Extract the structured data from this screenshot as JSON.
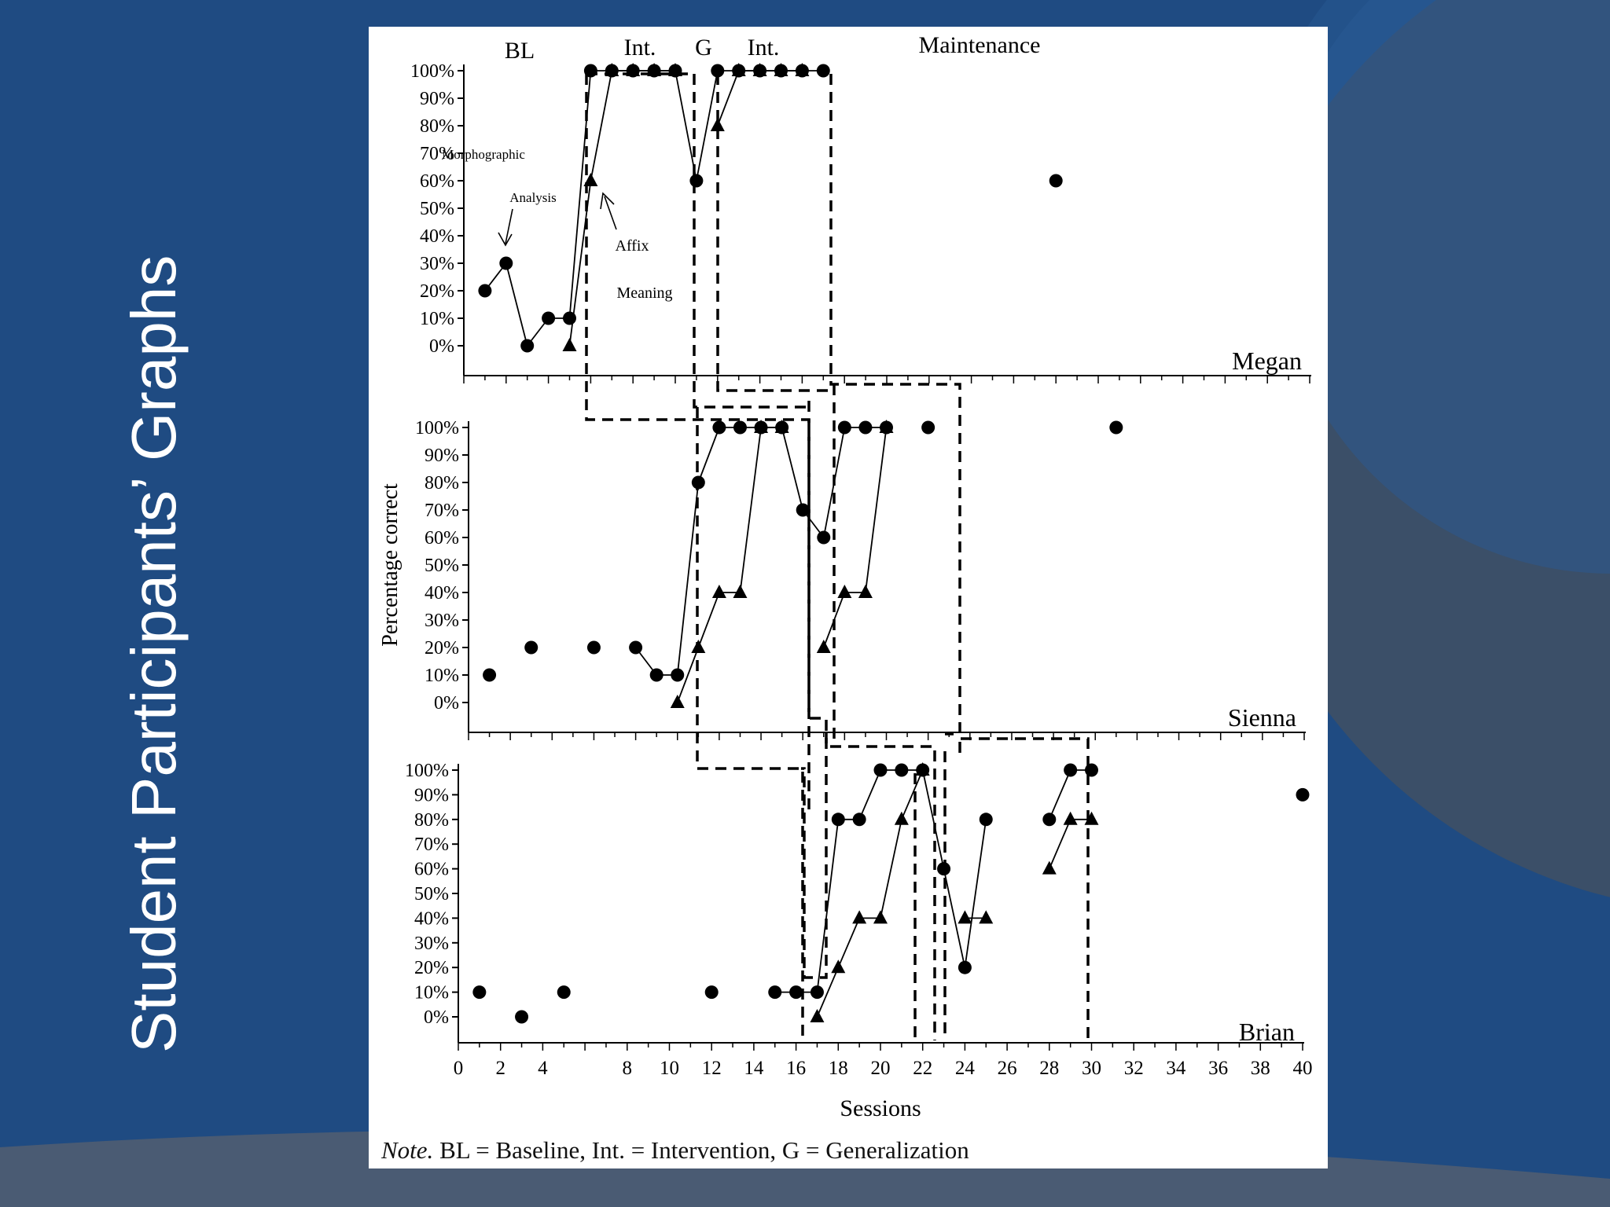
{
  "slide": {
    "title": "Student Participants’ Graphs"
  },
  "figure": {
    "note_prefix": "Note.",
    "note_text": " BL = Baseline, Int. = Intervention, G = Generalization"
  },
  "colors": {
    "background": "#1f4b82",
    "figure_bg": "#ffffff",
    "ink": "#000000"
  },
  "chart_data": [
    {
      "type": "scatter",
      "participant": "Megan",
      "phase_labels": [
        "BL",
        "Int.",
        "G",
        "Int.",
        "Maintenance"
      ],
      "annotations": [
        "Morphographic",
        "Analysis",
        "Affix",
        "Meaning"
      ],
      "xlim": [
        0,
        40
      ],
      "ylim": [
        0,
        100
      ],
      "yticks": [
        "0%",
        "10%",
        "20%",
        "30%",
        "40%",
        "50%",
        "60%",
        "70%",
        "80%",
        "90%",
        "100%"
      ],
      "series": [
        {
          "marker": "circle",
          "x": [
            1,
            2,
            3,
            4,
            5,
            6,
            7,
            8,
            9,
            10,
            11,
            12,
            13,
            14,
            15,
            16,
            17,
            28
          ],
          "y": [
            20,
            30,
            0,
            10,
            10,
            100,
            100,
            100,
            100,
            100,
            60,
            100,
            100,
            100,
            100,
            100,
            100,
            60
          ]
        },
        {
          "marker": "triangle",
          "x": [
            5,
            6,
            7,
            8,
            9,
            10,
            12,
            13,
            14,
            15,
            16
          ],
          "y": [
            0,
            60,
            100,
            100,
            100,
            100,
            80,
            100,
            100,
            100,
            100
          ]
        }
      ]
    },
    {
      "type": "scatter",
      "participant": "Sienna",
      "ylabel": "Percentage correct",
      "xlim": [
        0,
        40
      ],
      "ylim": [
        0,
        100
      ],
      "yticks": [
        "0%",
        "10%",
        "20%",
        "30%",
        "40%",
        "50%",
        "60%",
        "70%",
        "80%",
        "90%",
        "100%"
      ],
      "series": [
        {
          "marker": "circle",
          "x": [
            1,
            3,
            6,
            8,
            9,
            10,
            11,
            12,
            13,
            14,
            15,
            16,
            17,
            18,
            19,
            20,
            22,
            31
          ],
          "y": [
            10,
            20,
            20,
            20,
            10,
            10,
            80,
            100,
            100,
            100,
            100,
            70,
            60,
            100,
            100,
            100,
            100,
            100
          ]
        },
        {
          "marker": "triangle",
          "x": [
            10,
            11,
            12,
            13,
            14,
            15,
            17,
            18,
            19,
            20
          ],
          "y": [
            0,
            20,
            40,
            40,
            100,
            100,
            20,
            40,
            40,
            100
          ]
        }
      ]
    },
    {
      "type": "scatter",
      "participant": "Brian",
      "xlabel": "Sessions",
      "xlim": [
        0,
        40
      ],
      "ylim": [
        0,
        100
      ],
      "xticks": [
        "0",
        "2",
        "4",
        "8",
        "10",
        "12",
        "14",
        "16",
        "18",
        "20",
        "22",
        "24",
        "26",
        "28",
        "30",
        "32",
        "34",
        "36",
        "38",
        "40"
      ],
      "yticks": [
        "0%",
        "10%",
        "20%",
        "30%",
        "40%",
        "50%",
        "60%",
        "70%",
        "80%",
        "90%",
        "100%"
      ],
      "series": [
        {
          "marker": "circle",
          "x": [
            1,
            3,
            5,
            12,
            15,
            16,
            17,
            18,
            19,
            20,
            21,
            22,
            23,
            24,
            25,
            28,
            29,
            30,
            40
          ],
          "y": [
            10,
            0,
            10,
            10,
            10,
            10,
            10,
            80,
            80,
            100,
            100,
            100,
            60,
            20,
            80,
            80,
            100,
            100,
            90
          ]
        },
        {
          "marker": "triangle",
          "x": [
            17,
            18,
            19,
            20,
            21,
            22,
            24,
            25,
            28,
            29,
            30
          ],
          "y": [
            0,
            20,
            40,
            40,
            80,
            100,
            40,
            40,
            60,
            80,
            80
          ]
        }
      ]
    }
  ]
}
